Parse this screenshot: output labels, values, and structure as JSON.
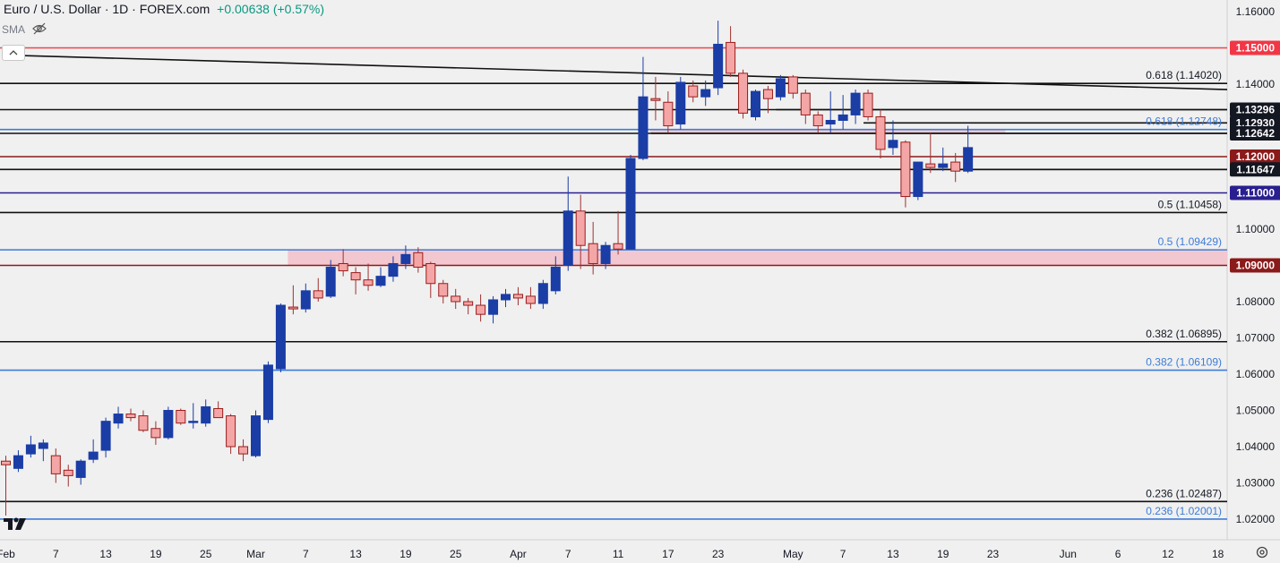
{
  "header": {
    "title": "Euro / U.S. Dollar · 1D · FOREX.com",
    "change": "+0.00638 (+0.57%)",
    "indicator": "SMA"
  },
  "colors": {
    "up": "#1a3da6",
    "down": "#f4a6a6",
    "down_border": "#9a1c1c",
    "wick_up": "#1a3da6",
    "wick_down": "#a03030",
    "red_level": "#e8474c",
    "dark_red_level": "#8b1a1a",
    "blue_level": "#3e7cd6",
    "navy_level": "#2a1f8f",
    "black_level": "#111111",
    "zone": "#f2c4cc",
    "trend": "#111111"
  },
  "chart_data": {
    "type": "candlestick",
    "title": "Euro / U.S. Dollar · 1D · FOREX.com",
    "ylim": [
      1.0175,
      1.1635
    ],
    "y_ticks": [
      "1.16000",
      "1.15000",
      "1.14000",
      "1.13000",
      "1.12000",
      "1.11000",
      "1.10000",
      "1.09000",
      "1.08000",
      "1.07000",
      "1.06000",
      "1.05000",
      "1.04000",
      "1.03000",
      "1.02000"
    ],
    "x_ticks": [
      {
        "label": "Feb",
        "index": 0
      },
      {
        "label": "7",
        "index": 4
      },
      {
        "label": "13",
        "index": 8
      },
      {
        "label": "19",
        "index": 12
      },
      {
        "label": "25",
        "index": 16
      },
      {
        "label": "Mar",
        "index": 20
      },
      {
        "label": "7",
        "index": 24
      },
      {
        "label": "13",
        "index": 28
      },
      {
        "label": "19",
        "index": 32
      },
      {
        "label": "25",
        "index": 36
      },
      {
        "label": "Apr",
        "index": 41
      },
      {
        "label": "7",
        "index": 45
      },
      {
        "label": "11",
        "index": 49
      },
      {
        "label": "17",
        "index": 53
      },
      {
        "label": "23",
        "index": 57
      },
      {
        "label": "May",
        "index": 63
      },
      {
        "label": "7",
        "index": 67
      },
      {
        "label": "13",
        "index": 71
      },
      {
        "label": "19",
        "index": 75
      },
      {
        "label": "23",
        "index": 79
      },
      {
        "label": "Jun",
        "index": 85
      },
      {
        "label": "6",
        "index": 89
      },
      {
        "label": "12",
        "index": 93
      },
      {
        "label": "18",
        "index": 97
      }
    ],
    "candles": [
      {
        "o": 1.036,
        "h": 1.0375,
        "l": 1.021,
        "c": 1.035
      },
      {
        "o": 1.034,
        "h": 1.039,
        "l": 1.033,
        "c": 1.0375
      },
      {
        "o": 1.038,
        "h": 1.043,
        "l": 1.037,
        "c": 1.0405
      },
      {
        "o": 1.0395,
        "h": 1.042,
        "l": 1.036,
        "c": 1.041
      },
      {
        "o": 1.0375,
        "h": 1.0395,
        "l": 1.03,
        "c": 1.0325
      },
      {
        "o": 1.0335,
        "h": 1.035,
        "l": 1.029,
        "c": 1.032
      },
      {
        "o": 1.0315,
        "h": 1.0365,
        "l": 1.0295,
        "c": 1.036
      },
      {
        "o": 1.0365,
        "h": 1.042,
        "l": 1.0355,
        "c": 1.0385
      },
      {
        "o": 1.039,
        "h": 1.048,
        "l": 1.037,
        "c": 1.047
      },
      {
        "o": 1.0465,
        "h": 1.051,
        "l": 1.045,
        "c": 1.049
      },
      {
        "o": 1.049,
        "h": 1.0505,
        "l": 1.047,
        "c": 1.048
      },
      {
        "o": 1.0485,
        "h": 1.05,
        "l": 1.044,
        "c": 1.0445
      },
      {
        "o": 1.045,
        "h": 1.047,
        "l": 1.0405,
        "c": 1.0425
      },
      {
        "o": 1.0425,
        "h": 1.051,
        "l": 1.042,
        "c": 1.05
      },
      {
        "o": 1.05,
        "h": 1.0505,
        "l": 1.046,
        "c": 1.0465
      },
      {
        "o": 1.047,
        "h": 1.052,
        "l": 1.045,
        "c": 1.047
      },
      {
        "o": 1.0465,
        "h": 1.053,
        "l": 1.0455,
        "c": 1.051
      },
      {
        "o": 1.0505,
        "h": 1.0525,
        "l": 1.049,
        "c": 1.048
      },
      {
        "o": 1.0485,
        "h": 1.049,
        "l": 1.038,
        "c": 1.04
      },
      {
        "o": 1.04,
        "h": 1.042,
        "l": 1.036,
        "c": 1.038
      },
      {
        "o": 1.0375,
        "h": 1.05,
        "l": 1.037,
        "c": 1.0485
      },
      {
        "o": 1.0475,
        "h": 1.0635,
        "l": 1.0465,
        "c": 1.0625
      },
      {
        "o": 1.0615,
        "h": 1.0795,
        "l": 1.0605,
        "c": 1.079
      },
      {
        "o": 1.0785,
        "h": 1.0845,
        "l": 1.0765,
        "c": 1.078
      },
      {
        "o": 1.078,
        "h": 1.085,
        "l": 1.077,
        "c": 1.083
      },
      {
        "o": 1.083,
        "h": 1.0865,
        "l": 1.08,
        "c": 1.081
      },
      {
        "o": 1.0815,
        "h": 1.0915,
        "l": 1.081,
        "c": 1.0895
      },
      {
        "o": 1.0905,
        "h": 1.0945,
        "l": 1.087,
        "c": 1.0885
      },
      {
        "o": 1.088,
        "h": 1.0895,
        "l": 1.082,
        "c": 1.086
      },
      {
        "o": 1.086,
        "h": 1.0905,
        "l": 1.083,
        "c": 1.0845
      },
      {
        "o": 1.0845,
        "h": 1.0895,
        "l": 1.084,
        "c": 1.087
      },
      {
        "o": 1.087,
        "h": 1.0925,
        "l": 1.0855,
        "c": 1.0905
      },
      {
        "o": 1.0905,
        "h": 1.0955,
        "l": 1.089,
        "c": 1.093
      },
      {
        "o": 1.0935,
        "h": 1.095,
        "l": 1.088,
        "c": 1.0895
      },
      {
        "o": 1.0905,
        "h": 1.091,
        "l": 1.081,
        "c": 1.085
      },
      {
        "o": 1.085,
        "h": 1.086,
        "l": 1.0795,
        "c": 1.0815
      },
      {
        "o": 1.0815,
        "h": 1.0835,
        "l": 1.078,
        "c": 1.08
      },
      {
        "o": 1.08,
        "h": 1.081,
        "l": 1.0765,
        "c": 1.079
      },
      {
        "o": 1.079,
        "h": 1.082,
        "l": 1.0745,
        "c": 1.0765
      },
      {
        "o": 1.0765,
        "h": 1.0815,
        "l": 1.074,
        "c": 1.0805
      },
      {
        "o": 1.0805,
        "h": 1.0835,
        "l": 1.0785,
        "c": 1.082
      },
      {
        "o": 1.082,
        "h": 1.084,
        "l": 1.079,
        "c": 1.081
      },
      {
        "o": 1.0815,
        "h": 1.084,
        "l": 1.078,
        "c": 1.0795
      },
      {
        "o": 1.0795,
        "h": 1.086,
        "l": 1.078,
        "c": 1.085
      },
      {
        "o": 1.083,
        "h": 1.0925,
        "l": 1.082,
        "c": 1.0895
      },
      {
        "o": 1.09,
        "h": 1.1145,
        "l": 1.0885,
        "c": 1.105
      },
      {
        "o": 1.105,
        "h": 1.1095,
        "l": 1.089,
        "c": 1.0955
      },
      {
        "o": 1.096,
        "h": 1.102,
        "l": 1.0875,
        "c": 1.0905
      },
      {
        "o": 1.0905,
        "h": 1.0965,
        "l": 1.089,
        "c": 1.0955
      },
      {
        "o": 1.096,
        "h": 1.105,
        "l": 1.093,
        "c": 1.0945
      },
      {
        "o": 1.0945,
        "h": 1.1205,
        "l": 1.0945,
        "c": 1.1195
      },
      {
        "o": 1.1195,
        "h": 1.1475,
        "l": 1.119,
        "c": 1.1365
      },
      {
        "o": 1.136,
        "h": 1.142,
        "l": 1.13,
        "c": 1.1355
      },
      {
        "o": 1.135,
        "h": 1.138,
        "l": 1.1265,
        "c": 1.1285
      },
      {
        "o": 1.129,
        "h": 1.142,
        "l": 1.1275,
        "c": 1.1405
      },
      {
        "o": 1.1395,
        "h": 1.141,
        "l": 1.135,
        "c": 1.1365
      },
      {
        "o": 1.1365,
        "h": 1.141,
        "l": 1.134,
        "c": 1.1385
      },
      {
        "o": 1.139,
        "h": 1.1575,
        "l": 1.137,
        "c": 1.151
      },
      {
        "o": 1.1515,
        "h": 1.156,
        "l": 1.142,
        "c": 1.143
      },
      {
        "o": 1.143,
        "h": 1.144,
        "l": 1.1305,
        "c": 1.132
      },
      {
        "o": 1.131,
        "h": 1.1385,
        "l": 1.13,
        "c": 1.138
      },
      {
        "o": 1.1385,
        "h": 1.1395,
        "l": 1.132,
        "c": 1.136
      },
      {
        "o": 1.1365,
        "h": 1.1425,
        "l": 1.1355,
        "c": 1.1415
      },
      {
        "o": 1.142,
        "h": 1.1425,
        "l": 1.136,
        "c": 1.1375
      },
      {
        "o": 1.1375,
        "h": 1.1385,
        "l": 1.129,
        "c": 1.1315
      },
      {
        "o": 1.1315,
        "h": 1.1325,
        "l": 1.1265,
        "c": 1.1285
      },
      {
        "o": 1.129,
        "h": 1.138,
        "l": 1.1265,
        "c": 1.13
      },
      {
        "o": 1.13,
        "h": 1.137,
        "l": 1.1275,
        "c": 1.1315
      },
      {
        "o": 1.1315,
        "h": 1.1385,
        "l": 1.129,
        "c": 1.1375
      },
      {
        "o": 1.1375,
        "h": 1.1385,
        "l": 1.13,
        "c": 1.131
      },
      {
        "o": 1.131,
        "h": 1.133,
        "l": 1.1195,
        "c": 1.122
      },
      {
        "o": 1.1225,
        "h": 1.13,
        "l": 1.1205,
        "c": 1.1245
      },
      {
        "o": 1.124,
        "h": 1.1245,
        "l": 1.106,
        "c": 1.109
      },
      {
        "o": 1.109,
        "h": 1.1185,
        "l": 1.108,
        "c": 1.1185
      },
      {
        "o": 1.118,
        "h": 1.1265,
        "l": 1.1155,
        "c": 1.117
      },
      {
        "o": 1.117,
        "h": 1.1225,
        "l": 1.116,
        "c": 1.118
      },
      {
        "o": 1.1185,
        "h": 1.121,
        "l": 1.113,
        "c": 1.116
      },
      {
        "o": 1.116,
        "h": 1.1285,
        "l": 1.1155,
        "c": 1.1225
      }
    ],
    "levels": [
      {
        "value": 1.15,
        "text": "1.15000",
        "style": "red",
        "badge": "red"
      },
      {
        "value": 1.1402,
        "text": "0.618 (1.14020)",
        "style": "black",
        "badge": ""
      },
      {
        "value": 1.13296,
        "text": "1.13296",
        "style": "black",
        "badge": "black"
      },
      {
        "value": 1.1293,
        "text": "1.12930",
        "style": "none",
        "badge": "black"
      },
      {
        "value": 1.12748,
        "text": "0.618 (1.12748)",
        "style": "blue",
        "badge": ""
      },
      {
        "value": 1.12642,
        "text": "1.12642",
        "style": "black",
        "badge": "black"
      },
      {
        "value": 1.12,
        "text": "1.12000",
        "style": "darkred",
        "badge": "darkred"
      },
      {
        "value": 1.11647,
        "text": "1.11647",
        "style": "black",
        "badge": "black"
      },
      {
        "value": 1.11,
        "text": "1.11000",
        "style": "navy",
        "badge": "navy"
      },
      {
        "value": 1.10458,
        "text": "0.5 (1.10458)",
        "style": "black",
        "badge": ""
      },
      {
        "value": 1.09429,
        "text": "0.5 (1.09429)",
        "style": "blue",
        "badge": ""
      },
      {
        "value": 1.09,
        "text": "1.09000",
        "style": "darkred",
        "badge": "darkred"
      },
      {
        "value": 1.06895,
        "text": "0.382 (1.06895)",
        "style": "black",
        "badge": ""
      },
      {
        "value": 1.06109,
        "text": "0.382 (1.06109)",
        "style": "blue",
        "badge": ""
      },
      {
        "value": 1.02487,
        "text": "0.236 (1.02487)",
        "style": "black",
        "badge": ""
      },
      {
        "value": 1.02001,
        "text": "0.236 (1.02001)",
        "style": "blue",
        "badge": ""
      }
    ],
    "zones": [
      {
        "from_index": 23,
        "to_index": 111,
        "low": 1.09,
        "high": 1.0943
      },
      {
        "from_index": 52,
        "to_index": 80,
        "low": 1.1264,
        "high": 1.1275
      }
    ],
    "trendline": {
      "from": {
        "index": 0,
        "value": 1.148
      },
      "to": {
        "index": 111,
        "value": 1.1385
      }
    },
    "horizontal_rays": [
      {
        "from_index": 52,
        "value": 1.12642
      },
      {
        "from_index": 62,
        "value": 1.13296
      },
      {
        "from_index": 69,
        "value": 1.1293
      },
      {
        "from_index": 73,
        "value": 1.11647
      }
    ]
  }
}
